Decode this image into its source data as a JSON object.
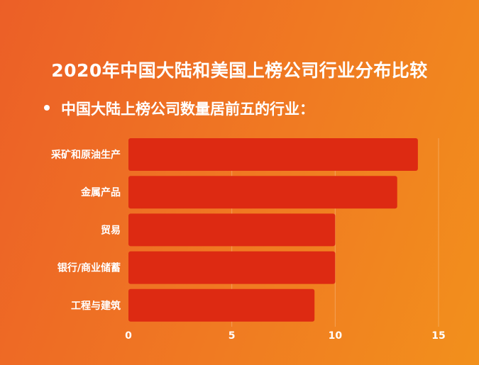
{
  "title": "2020年中国大陆和美国上榜公司行业分布比较",
  "subtitle": "中国大陆上榜公司数量居前五的行业：",
  "colors": {
    "bar": "#dd2a12",
    "background_left": "#ec5f27",
    "background_right": "#f2901c",
    "text": "#ffffff"
  },
  "chart_data": {
    "type": "bar",
    "orientation": "horizontal",
    "categories": [
      "采矿和原油生产",
      "金属产品",
      "贸易",
      "银行/商业储蓄",
      "工程与建筑"
    ],
    "values": [
      14,
      13,
      10,
      10,
      9
    ],
    "xlim": [
      0,
      15
    ],
    "xticks": [
      "0",
      "5",
      "10",
      "15"
    ],
    "grid": true,
    "legend": "none"
  }
}
